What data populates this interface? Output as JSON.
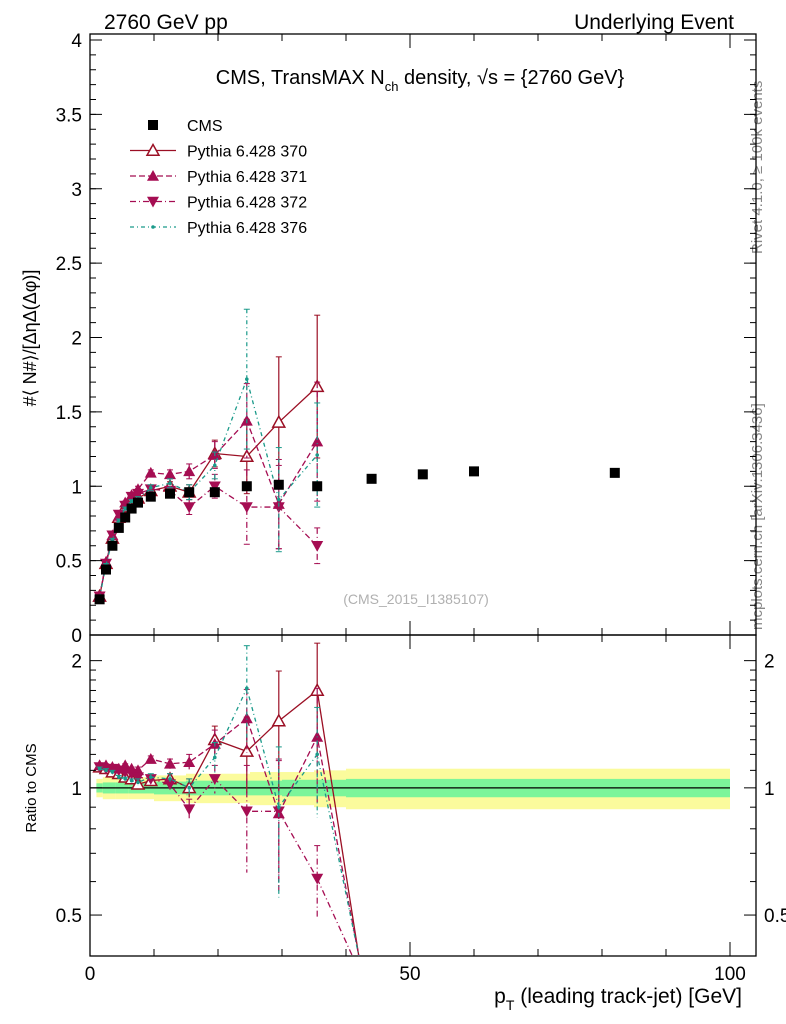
{
  "header": {
    "left": "2760 GeV pp",
    "right": "Underlying Event"
  },
  "side_labels": {
    "rivet": "Rivet 4.1.0, ≥ 100k events",
    "mcplots": "mcplots.cern.ch [arXiv:1306.3436]"
  },
  "chart_data": {
    "type": "line",
    "title_parts": {
      "prefix": "CMS, TransMAX N",
      "subscript": "ch",
      "suffix": " density, ",
      "sqrt": "√s",
      "tail": " = {2760 GeV}"
    },
    "watermark": "(CMS_2015_I1385107)",
    "ylabel": "#⟨ N#⟩/[ΔηΔ(Δφ)]",
    "ratio_ylabel": "Ratio to CMS",
    "xlabel_parts": {
      "p": "p",
      "sub": "T",
      "rest": " (leading track-jet) [GeV]"
    },
    "xlim": [
      0,
      100
    ],
    "ylim": [
      0,
      4
    ],
    "ratio_ylim": [
      0.4,
      2.3
    ],
    "x_ticks": [
      "0",
      "50",
      "100"
    ],
    "y_ticks": [
      "0",
      "0.5",
      "1",
      "1.5",
      "2",
      "2.5",
      "3",
      "3.5",
      "4"
    ],
    "ratio_ticks": [
      "0.5",
      "1",
      "2"
    ],
    "legend": [
      {
        "key": "cms",
        "label": "CMS"
      },
      {
        "key": "p370",
        "label": "Pythia 6.428 370"
      },
      {
        "key": "p371",
        "label": "Pythia 6.428 371"
      },
      {
        "key": "p372",
        "label": "Pythia 6.428 372"
      },
      {
        "key": "p376",
        "label": "Pythia 6.428 376"
      }
    ],
    "colors": {
      "cms": "#000000",
      "p370": "#9b0f24",
      "p371": "#a50d52",
      "p372": "#a50d52",
      "p376": "#1a9a8a",
      "band_inner": "#7cf59a",
      "band_outer": "#fbfb9c"
    },
    "data": {
      "name": "CMS",
      "x": [
        1.5,
        2.5,
        3.5,
        4.5,
        5.5,
        6.5,
        7.5,
        9.5,
        12.5,
        15.5,
        19.5,
        24.5,
        29.5,
        35.5,
        44,
        52,
        60,
        82
      ],
      "y": [
        0.24,
        0.44,
        0.6,
        0.72,
        0.79,
        0.85,
        0.89,
        0.93,
        0.95,
        0.96,
        0.96,
        1.0,
        1.01,
        1.0,
        1.05,
        1.08,
        1.1,
        1.09
      ]
    },
    "series": [
      {
        "key": "p370",
        "name": "Pythia 6.428 370",
        "marker": "triangle-open",
        "dash": "",
        "x": [
          1.5,
          2.5,
          3.5,
          4.5,
          5.5,
          6.5,
          7.5,
          9.5,
          12.5,
          15.5,
          19.5,
          24.5,
          29.5,
          35.5
        ],
        "y": [
          0.26,
          0.48,
          0.65,
          0.79,
          0.86,
          0.9,
          0.92,
          0.97,
          1.0,
          0.96,
          1.22,
          1.2,
          1.43,
          1.67
        ],
        "err": [
          0.01,
          0.01,
          0.01,
          0.01,
          0.01,
          0.01,
          0.02,
          0.02,
          0.03,
          0.05,
          0.09,
          0.25,
          0.44,
          0.48
        ],
        "ratio_x": [
          1.5,
          2.5,
          3.5,
          4.5,
          5.5,
          6.5,
          7.5,
          9.5,
          12.5,
          15.5,
          19.5,
          24.5,
          29.5,
          35.5,
          42
        ],
        "ratio_y": [
          1.12,
          1.11,
          1.09,
          1.08,
          1.06,
          1.05,
          1.02,
          1.04,
          1.05,
          1.0,
          1.3,
          1.22,
          1.44,
          1.7,
          0.38
        ],
        "ratio_err": [
          0.01,
          0.01,
          0.01,
          0.01,
          0.01,
          0.01,
          0.02,
          0.02,
          0.03,
          0.05,
          0.1,
          0.25,
          0.45,
          0.5,
          0
        ]
      },
      {
        "key": "p371",
        "name": "Pythia 6.428 371",
        "marker": "triangle-up",
        "dash": "6,3",
        "x": [
          1.5,
          2.5,
          3.5,
          4.5,
          5.5,
          6.5,
          7.5,
          9.5,
          12.5,
          15.5,
          19.5,
          24.5,
          29.5,
          35.5
        ],
        "y": [
          0.26,
          0.49,
          0.67,
          0.8,
          0.89,
          0.94,
          0.98,
          1.09,
          1.08,
          1.1,
          1.21,
          1.44,
          0.88,
          1.3
        ],
        "err": [
          0.01,
          0.01,
          0.01,
          0.01,
          0.01,
          0.01,
          0.02,
          0.02,
          0.03,
          0.05,
          0.09,
          0.25,
          0.3,
          0.4
        ],
        "ratio_x": [
          1.5,
          2.5,
          3.5,
          4.5,
          5.5,
          6.5,
          7.5,
          9.5,
          12.5,
          15.5,
          19.5,
          24.5,
          29.5,
          35.5,
          42
        ],
        "ratio_y": [
          1.13,
          1.13,
          1.12,
          1.11,
          1.13,
          1.11,
          1.1,
          1.17,
          1.14,
          1.15,
          1.27,
          1.46,
          0.87,
          1.32,
          0.38
        ],
        "ratio_err": [
          0.01,
          0.01,
          0.01,
          0.01,
          0.01,
          0.01,
          0.02,
          0.02,
          0.03,
          0.05,
          0.1,
          0.25,
          0.3,
          0.4,
          0
        ]
      },
      {
        "key": "p372",
        "name": "Pythia 6.428 372",
        "marker": "triangle-down",
        "dash": "6,3,1,3",
        "x": [
          1.5,
          2.5,
          3.5,
          4.5,
          5.5,
          6.5,
          7.5,
          9.5,
          12.5,
          15.5,
          19.5,
          24.5,
          29.5,
          35.5
        ],
        "y": [
          0.26,
          0.48,
          0.67,
          0.81,
          0.87,
          0.93,
          0.95,
          0.98,
          0.97,
          0.86,
          1.0,
          0.86,
          0.86,
          0.6
        ],
        "err": [
          0.01,
          0.01,
          0.01,
          0.01,
          0.01,
          0.01,
          0.02,
          0.02,
          0.03,
          0.05,
          0.08,
          0.25,
          0.28,
          0.12
        ],
        "ratio_x": [
          1.5,
          2.5,
          3.5,
          4.5,
          5.5,
          6.5,
          7.5,
          9.5,
          12.5,
          15.5,
          19.5,
          24.5,
          29.5,
          35.5,
          41
        ],
        "ratio_y": [
          1.12,
          1.11,
          1.11,
          1.1,
          1.09,
          1.08,
          1.06,
          1.05,
          1.02,
          0.89,
          1.05,
          0.88,
          0.88,
          0.61,
          0.38
        ],
        "ratio_err": [
          0.01,
          0.01,
          0.01,
          0.01,
          0.01,
          0.01,
          0.02,
          0.02,
          0.03,
          0.05,
          0.08,
          0.25,
          0.28,
          0.12,
          0
        ]
      },
      {
        "key": "p376",
        "name": "Pythia 6.428 376",
        "marker": "dot",
        "dash": "4,3,1,3",
        "x": [
          1.5,
          2.5,
          3.5,
          4.5,
          5.5,
          6.5,
          7.5,
          9.5,
          12.5,
          15.5,
          19.5,
          24.5,
          29.5,
          35.5
        ],
        "y": [
          0.25,
          0.47,
          0.64,
          0.77,
          0.85,
          0.9,
          0.91,
          0.99,
          1.02,
          0.96,
          1.14,
          1.72,
          0.91,
          1.21
        ],
        "err": [
          0.01,
          0.01,
          0.01,
          0.01,
          0.01,
          0.01,
          0.02,
          0.02,
          0.03,
          0.05,
          0.09,
          0.47,
          0.35,
          0.35
        ],
        "ratio_x": [
          1.5,
          2.5,
          3.5,
          4.5,
          5.5,
          6.5,
          7.5,
          9.5,
          12.5,
          15.5,
          19.5,
          24.5,
          29.5,
          35.5,
          42
        ],
        "ratio_y": [
          1.11,
          1.1,
          1.09,
          1.06,
          1.05,
          1.04,
          1.03,
          1.06,
          1.05,
          1.0,
          1.18,
          1.72,
          0.9,
          1.2,
          0.38
        ],
        "ratio_err": [
          0.01,
          0.01,
          0.01,
          0.01,
          0.01,
          0.01,
          0.02,
          0.02,
          0.03,
          0.05,
          0.1,
          0.45,
          0.35,
          0.35,
          0
        ]
      }
    ],
    "ratio_band": {
      "x_edges": [
        1,
        2,
        4,
        6,
        10,
        15,
        20,
        25,
        30,
        35,
        40,
        100
      ],
      "inner": [
        0.025,
        0.03,
        0.03,
        0.03,
        0.035,
        0.04,
        0.04,
        0.04,
        0.045,
        0.045,
        0.05
      ],
      "outer": [
        0.05,
        0.06,
        0.06,
        0.06,
        0.07,
        0.08,
        0.08,
        0.09,
        0.09,
        0.1,
        0.11
      ]
    }
  }
}
